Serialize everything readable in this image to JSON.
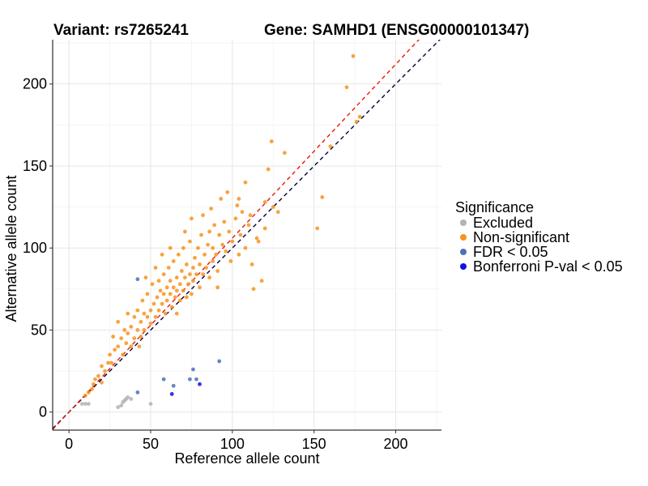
{
  "chart_data": {
    "type": "scatter",
    "title_left": "Variant: rs7265241",
    "title_right": "Gene: SAMHD1 (ENSG00000101347)",
    "xlabel": "Reference allele count",
    "ylabel": "Alternative allele count",
    "xlim": [
      -10,
      228
    ],
    "ylim": [
      -11,
      227
    ],
    "xticks": [
      0,
      50,
      100,
      150,
      200
    ],
    "yticks": [
      0,
      50,
      100,
      150,
      200
    ],
    "grid": true,
    "reference_lines": [
      {
        "name": "identity",
        "slope": 1,
        "intercept": 0,
        "color": "#000033",
        "style": "dashed"
      },
      {
        "name": "fit",
        "slope": 1.06,
        "intercept": 0,
        "color": "#e8180c",
        "style": "dashed"
      }
    ],
    "legend": {
      "title": "Significance",
      "position": "right",
      "entries": [
        {
          "label": "Excluded",
          "color": "#b3b3b3"
        },
        {
          "label": "Non-significant",
          "color": "#f7931e"
        },
        {
          "label": "FDR < 0.05",
          "color": "#4a72b8"
        },
        {
          "label": "Bonferroni P-val < 0.05",
          "color": "#1010e6"
        }
      ]
    },
    "series": [
      {
        "name": "Excluded",
        "color": "#b3b3b3",
        "points": [
          [
            8,
            5
          ],
          [
            10,
            5
          ],
          [
            12,
            5
          ],
          [
            30,
            3
          ],
          [
            32,
            4
          ],
          [
            34,
            7
          ],
          [
            35,
            8
          ],
          [
            36,
            9
          ],
          [
            33,
            6
          ],
          [
            38,
            8
          ],
          [
            50,
            5
          ]
        ]
      },
      {
        "name": "Non-significant",
        "color": "#f7931e",
        "points": [
          [
            10,
            10
          ],
          [
            12,
            12
          ],
          [
            14,
            14
          ],
          [
            15,
            17
          ],
          [
            16,
            20
          ],
          [
            18,
            22
          ],
          [
            20,
            18
          ],
          [
            22,
            25
          ],
          [
            24,
            30
          ],
          [
            25,
            35
          ],
          [
            26,
            30
          ],
          [
            28,
            38
          ],
          [
            30,
            40
          ],
          [
            30,
            55
          ],
          [
            32,
            45
          ],
          [
            33,
            35
          ],
          [
            34,
            50
          ],
          [
            35,
            42
          ],
          [
            36,
            48
          ],
          [
            38,
            52
          ],
          [
            38,
            40
          ],
          [
            40,
            45
          ],
          [
            40,
            58
          ],
          [
            42,
            50
          ],
          [
            42,
            62
          ],
          [
            44,
            55
          ],
          [
            44,
            46
          ],
          [
            45,
            68
          ],
          [
            46,
            60
          ],
          [
            46,
            50
          ],
          [
            48,
            58
          ],
          [
            48,
            72
          ],
          [
            50,
            62
          ],
          [
            50,
            54
          ],
          [
            51,
            78
          ],
          [
            52,
            66
          ],
          [
            53,
            58
          ],
          [
            54,
            70
          ],
          [
            55,
            62
          ],
          [
            55,
            80
          ],
          [
            56,
            74
          ],
          [
            57,
            66
          ],
          [
            58,
            72
          ],
          [
            58,
            84
          ],
          [
            59,
            60
          ],
          [
            60,
            76
          ],
          [
            60,
            68
          ],
          [
            61,
            88
          ],
          [
            62,
            72
          ],
          [
            62,
            80
          ],
          [
            63,
            64
          ],
          [
            64,
            76
          ],
          [
            64,
            92
          ],
          [
            65,
            70
          ],
          [
            66,
            82
          ],
          [
            66,
            74
          ],
          [
            67,
            96
          ],
          [
            68,
            78
          ],
          [
            68,
            68
          ],
          [
            69,
            86
          ],
          [
            70,
            74
          ],
          [
            70,
            100
          ],
          [
            71,
            82
          ],
          [
            72,
            70
          ],
          [
            72,
            90
          ],
          [
            73,
            78
          ],
          [
            74,
            84
          ],
          [
            74,
            104
          ],
          [
            75,
            72
          ],
          [
            76,
            88
          ],
          [
            76,
            80
          ],
          [
            77,
            94
          ],
          [
            78,
            84
          ],
          [
            79,
            100
          ],
          [
            80,
            76
          ],
          [
            80,
            90
          ],
          [
            81,
            108
          ],
          [
            82,
            84
          ],
          [
            83,
            96
          ],
          [
            84,
            88
          ],
          [
            85,
            102
          ],
          [
            86,
            82
          ],
          [
            86,
            110
          ],
          [
            88,
            92
          ],
          [
            88,
            100
          ],
          [
            89,
            114
          ],
          [
            90,
            96
          ],
          [
            91,
            86
          ],
          [
            92,
            108
          ],
          [
            94,
            102
          ],
          [
            95,
            116
          ],
          [
            96,
            98
          ],
          [
            98,
            110
          ],
          [
            100,
            104
          ],
          [
            102,
            118
          ],
          [
            104,
            96
          ],
          [
            105,
            108
          ],
          [
            106,
            122
          ],
          [
            108,
            100
          ],
          [
            110,
            114
          ],
          [
            111,
            120
          ],
          [
            112,
            90
          ],
          [
            113,
            75
          ],
          [
            115,
            106
          ],
          [
            118,
            80
          ],
          [
            120,
            112
          ],
          [
            122,
            148
          ],
          [
            124,
            165
          ],
          [
            125,
            125
          ],
          [
            128,
            122
          ],
          [
            132,
            158
          ],
          [
            152,
            112
          ],
          [
            155,
            131
          ],
          [
            160,
            162
          ],
          [
            170,
            198
          ],
          [
            174,
            217
          ],
          [
            176,
            177
          ],
          [
            178,
            180
          ],
          [
            20,
            28
          ],
          [
            27,
            46
          ],
          [
            36,
            60
          ],
          [
            43,
            40
          ],
          [
            47,
            82
          ],
          [
            53,
            88
          ],
          [
            57,
            96
          ],
          [
            62,
            100
          ],
          [
            66,
            60
          ],
          [
            71,
            110
          ],
          [
            75,
            118
          ],
          [
            82,
            120
          ],
          [
            87,
            124
          ],
          [
            93,
            130
          ],
          [
            97,
            134
          ],
          [
            103,
            126
          ],
          [
            108,
            140
          ],
          [
            116,
            104
          ],
          [
            120,
            128
          ],
          [
            104,
            130
          ],
          [
            91,
            76
          ],
          [
            99,
            92
          ]
        ]
      },
      {
        "name": "FDR < 0.05",
        "color": "#4a72b8",
        "points": [
          [
            42,
            81
          ],
          [
            42,
            12
          ],
          [
            58,
            20
          ],
          [
            64,
            16
          ],
          [
            74,
            20
          ],
          [
            76,
            26
          ],
          [
            78,
            20
          ],
          [
            92,
            31
          ]
        ]
      },
      {
        "name": "Bonferroni P-val < 0.05",
        "color": "#1010e6",
        "points": [
          [
            63,
            11
          ],
          [
            80,
            17
          ]
        ]
      }
    ]
  }
}
